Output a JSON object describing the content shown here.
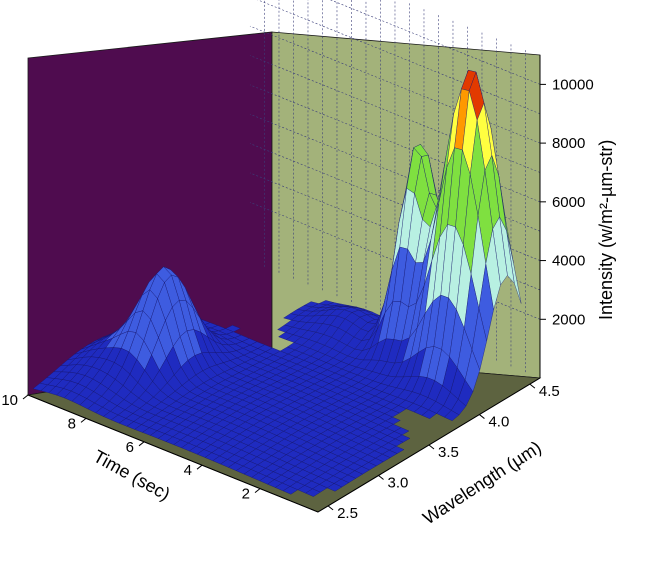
{
  "chart_data": {
    "type": "surface",
    "title": "",
    "zlabel": "Intensity (w/m²-µm-str)",
    "xlabel": "Time (sec)",
    "ylabel": "Wavelength (µm)",
    "z_ticks": [
      "2000",
      "4000",
      "6000",
      "8000",
      "10000"
    ],
    "x_ticks": [
      "10",
      "8",
      "6",
      "4",
      "2"
    ],
    "y_ticks": [
      "2.5",
      "3.0",
      "3.5",
      "4.0",
      "4.5"
    ],
    "zlim": [
      0,
      11000
    ],
    "xlim": [
      0,
      10
    ],
    "ylim": [
      2.4,
      4.6
    ],
    "colors": {
      "back_wall": "#4f0c4f",
      "side_wall": "#a3b27a",
      "floor": "#5d6340",
      "band_low": "#1f2bc0",
      "band_mid": "#3e5ce0",
      "band_cyan": "#b8f0e2",
      "band_green": "#7fe040",
      "band_yellow": "#ffff40",
      "band_orange": "#ff9900",
      "band_red": "#e23a00"
    },
    "peaks": [
      {
        "time": 1.5,
        "wavelength": 4.35,
        "intensity": 10500
      },
      {
        "time": 3.5,
        "wavelength": 4.4,
        "intensity": 7000
      },
      {
        "time": 8.0,
        "wavelength": 3.2,
        "intensity": 3000
      }
    ]
  }
}
